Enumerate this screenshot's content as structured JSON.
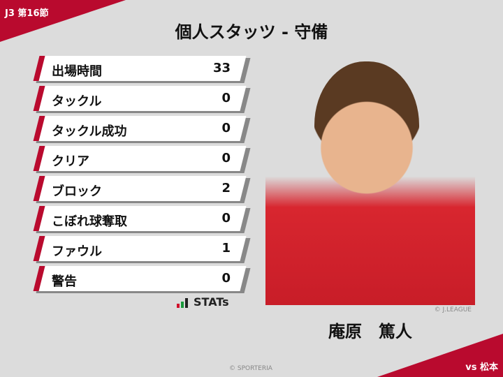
{
  "header": {
    "round": "J3 第16節",
    "title": "個人スタッツ - 守備",
    "opponent": "vs 松本"
  },
  "stats": [
    {
      "label": "出場時間",
      "value": "33"
    },
    {
      "label": "タックル",
      "value": "0"
    },
    {
      "label": "タックル成功",
      "value": "0"
    },
    {
      "label": "クリア",
      "value": "0"
    },
    {
      "label": "ブロック",
      "value": "2"
    },
    {
      "label": "こぼれ球奪取",
      "value": "0"
    },
    {
      "label": "ファウル",
      "value": "1"
    },
    {
      "label": "警告",
      "value": "0"
    }
  ],
  "logo": {
    "text": "STATs"
  },
  "player": {
    "name": "庵原　篤人",
    "photo_credit": "© J.LEAGUE"
  },
  "footer": {
    "credit": "© SPORTERIA"
  },
  "colors": {
    "accent": "#b90a2e",
    "background": "#dcdcdc"
  }
}
